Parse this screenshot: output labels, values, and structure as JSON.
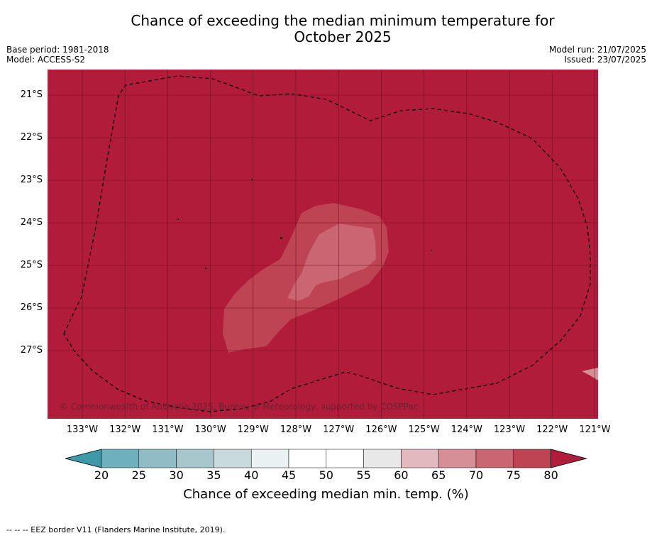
{
  "title_line1": "Chance of exceeding the median minimum temperature for",
  "title_line2": "October 2025",
  "base_period": "Base period: 1981-2018",
  "model": "Model: ACCESS-S2",
  "model_run": "Model run: 21/07/2025",
  "issued": "Issued: 23/07/2025",
  "copyright": "© Commonwealth of Australia 2025, Bureau of Meteorology, supported by COSPPac",
  "lat_labels": [
    "21°S",
    "22°S",
    "23°S",
    "24°S",
    "25°S",
    "26°S",
    "27°S"
  ],
  "lon_labels": [
    "133°W",
    "132°W",
    "131°W",
    "130°W",
    "129°W",
    "128°W",
    "127°W",
    "126°W",
    "125°W",
    "124°W",
    "123°W",
    "122°W",
    "121°W"
  ],
  "colorbar": {
    "ticks": [
      "20",
      "25",
      "30",
      "35",
      "40",
      "45",
      "50",
      "55",
      "60",
      "65",
      "70",
      "75",
      "80"
    ],
    "colors": [
      "#3e9aaa",
      "#6fb0bf",
      "#90bcc6",
      "#a8c7cc",
      "#c9dadd",
      "#eaf1f2",
      "#ffffff",
      "#ffffff",
      "#e8e8e8",
      "#e2b9bf",
      "#d68e97",
      "#c96672",
      "#bf4453",
      "#b01c3a"
    ],
    "label": "Chance of exceeding median min. temp. (%)"
  },
  "map_colors": {
    "background": "#b01c3a",
    "band_75": "#bf4453",
    "band_70": "#c96672",
    "band_65": "#d68e97"
  },
  "footer": "--  --  -- EEZ border V11 (Flanders Marine Institute, 2019)."
}
